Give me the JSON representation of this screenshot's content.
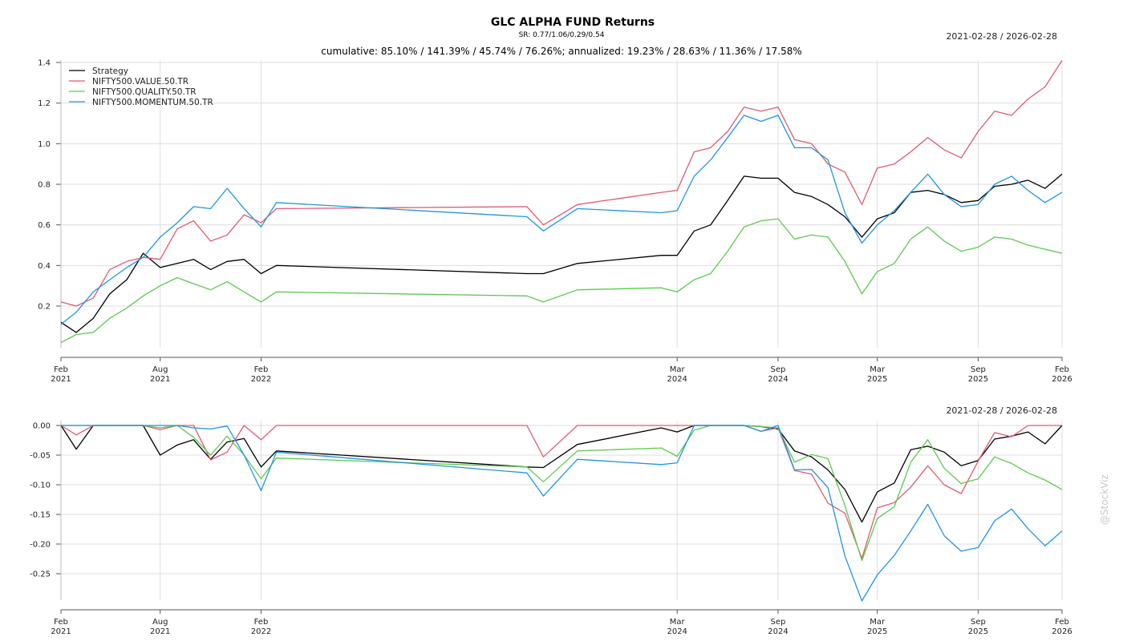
{
  "header": {
    "title": "GLC ALPHA FUND Returns",
    "sharpe": "SR: 0.77/1.06/0.29/0.54",
    "summary": "cumulative: 85.10% / 141.39% / 45.74% / 76.26%; annualized: 19.23% / 28.63% / 11.36% / 17.58%",
    "date_range_top": "2021-02-28 / 2026-02-28",
    "date_range_bottom": "2021-02-28 / 2026-02-28"
  },
  "watermark": "@StockViz",
  "colors": {
    "Strategy": "#000000",
    "NIFTY500.VALUE.50.TR": "#e05a6e",
    "NIFTY500.QUALITY.50.TR": "#5cc94f",
    "NIFTY500.MOMENTUM.50.TR": "#1f96e0",
    "grid": "#dddddd",
    "axis": "#555555"
  },
  "chart_data": [
    {
      "type": "line",
      "title": "GLC ALPHA FUND Returns",
      "ylim": [
        0,
        1.4
      ],
      "yticks": [
        0.2,
        0.4,
        0.6,
        0.8,
        1.0,
        1.2,
        1.4
      ],
      "ytick_labels": [
        "0.2",
        "0.4",
        "0.6",
        "0.8",
        "1.0",
        "1.2",
        "1.4"
      ],
      "xticks": [
        {
          "date": "2021-02",
          "label": [
            "Feb",
            "2021"
          ]
        },
        {
          "date": "2021-08",
          "label": [
            "Aug",
            "2021"
          ]
        },
        {
          "date": "2022-02",
          "label": [
            "Feb",
            "2022"
          ]
        },
        {
          "date": "2024-03",
          "label": [
            "Mar",
            "2024"
          ]
        },
        {
          "date": "2024-09",
          "label": [
            "Sep",
            "2024"
          ]
        },
        {
          "date": "2025-03",
          "label": [
            "Mar",
            "2025"
          ]
        },
        {
          "date": "2025-09",
          "label": [
            "Sep",
            "2025"
          ]
        },
        {
          "date": "2026-02",
          "label": [
            "Feb",
            "2026"
          ]
        }
      ],
      "grid": true,
      "legend": "top-left",
      "x": [
        "2021-02",
        "2021-03",
        "2021-04",
        "2021-05",
        "2021-06",
        "2021-07",
        "2021-08",
        "2021-09",
        "2021-10",
        "2021-11",
        "2021-12",
        "2022-01",
        "2022-02",
        "2022-03",
        "2023-06",
        "2023-07",
        "2023-09",
        "2024-02",
        "2024-03",
        "2024-04",
        "2024-05",
        "2024-06",
        "2024-07",
        "2024-08",
        "2024-09",
        "2024-10",
        "2024-11",
        "2024-12",
        "2025-01",
        "2025-02",
        "2025-03",
        "2025-04",
        "2025-05",
        "2025-06",
        "2025-07",
        "2025-08",
        "2025-09",
        "2025-10",
        "2025-11",
        "2025-12",
        "2026-01",
        "2026-02"
      ],
      "series": [
        {
          "name": "Strategy",
          "values": [
            0.12,
            0.07,
            0.14,
            0.26,
            0.33,
            0.46,
            0.39,
            0.41,
            0.43,
            0.38,
            0.42,
            0.43,
            0.36,
            0.4,
            0.36,
            0.36,
            0.41,
            0.45,
            0.45,
            0.57,
            0.6,
            0.72,
            0.84,
            0.83,
            0.83,
            0.76,
            0.74,
            0.7,
            0.64,
            0.54,
            0.63,
            0.66,
            0.76,
            0.77,
            0.75,
            0.71,
            0.72,
            0.79,
            0.8,
            0.82,
            0.78,
            0.85
          ]
        },
        {
          "name": "NIFTY500.VALUE.50.TR",
          "values": [
            0.22,
            0.2,
            0.24,
            0.38,
            0.42,
            0.44,
            0.43,
            0.58,
            0.62,
            0.52,
            0.55,
            0.65,
            0.61,
            0.68,
            0.69,
            0.6,
            0.7,
            0.76,
            0.77,
            0.96,
            0.98,
            1.06,
            1.18,
            1.16,
            1.18,
            1.02,
            1.0,
            0.9,
            0.86,
            0.7,
            0.88,
            0.9,
            0.96,
            1.03,
            0.97,
            0.93,
            1.06,
            1.16,
            1.14,
            1.22,
            1.28,
            1.41
          ]
        },
        {
          "name": "NIFTY500.QUALITY.50.TR",
          "values": [
            0.02,
            0.06,
            0.07,
            0.14,
            0.19,
            0.25,
            0.3,
            0.34,
            0.31,
            0.28,
            0.32,
            0.27,
            0.22,
            0.27,
            0.25,
            0.22,
            0.28,
            0.29,
            0.27,
            0.33,
            0.36,
            0.47,
            0.59,
            0.62,
            0.63,
            0.53,
            0.55,
            0.54,
            0.42,
            0.26,
            0.37,
            0.41,
            0.53,
            0.59,
            0.52,
            0.47,
            0.49,
            0.54,
            0.53,
            0.5,
            0.48,
            0.46
          ]
        },
        {
          "name": "NIFTY500.MOMENTUM.50.TR",
          "values": [
            0.11,
            0.17,
            0.27,
            0.33,
            0.39,
            0.44,
            0.54,
            0.61,
            0.69,
            0.68,
            0.78,
            0.68,
            0.59,
            0.71,
            0.64,
            0.57,
            0.68,
            0.66,
            0.67,
            0.84,
            0.92,
            1.03,
            1.14,
            1.11,
            1.14,
            0.98,
            0.98,
            0.92,
            0.66,
            0.51,
            0.6,
            0.67,
            0.76,
            0.85,
            0.75,
            0.69,
            0.7,
            0.8,
            0.84,
            0.77,
            0.71,
            0.76
          ]
        }
      ]
    },
    {
      "type": "line",
      "title": "",
      "ylim": [
        -0.27,
        0.0
      ],
      "yticks": [
        0.0,
        -0.05,
        -0.1,
        -0.15,
        -0.2,
        -0.25
      ],
      "ytick_labels": [
        "0.00",
        "-0.05",
        "-0.10",
        "-0.15",
        "-0.20",
        "-0.25"
      ],
      "xticks": [
        {
          "date": "2021-02",
          "label": [
            "Feb",
            "2021"
          ]
        },
        {
          "date": "2021-08",
          "label": [
            "Aug",
            "2021"
          ]
        },
        {
          "date": "2022-02",
          "label": [
            "Feb",
            "2022"
          ]
        },
        {
          "date": "2024-03",
          "label": [
            "Mar",
            "2024"
          ]
        },
        {
          "date": "2024-09",
          "label": [
            "Sep",
            "2024"
          ]
        },
        {
          "date": "2025-03",
          "label": [
            "Mar",
            "2025"
          ]
        },
        {
          "date": "2025-09",
          "label": [
            "Sep",
            "2025"
          ]
        },
        {
          "date": "2026-02",
          "label": [
            "Feb",
            "2026"
          ]
        }
      ],
      "grid": true,
      "legend": "none",
      "x": [
        "2021-02",
        "2021-03",
        "2021-04",
        "2021-05",
        "2021-06",
        "2021-07",
        "2021-08",
        "2021-09",
        "2021-10",
        "2021-11",
        "2021-12",
        "2022-01",
        "2022-02",
        "2022-03",
        "2023-06",
        "2023-07",
        "2023-09",
        "2024-02",
        "2024-03",
        "2024-04",
        "2024-05",
        "2024-06",
        "2024-07",
        "2024-08",
        "2024-09",
        "2024-10",
        "2024-11",
        "2024-12",
        "2025-01",
        "2025-02",
        "2025-03",
        "2025-04",
        "2025-05",
        "2025-06",
        "2025-07",
        "2025-08",
        "2025-09",
        "2025-10",
        "2025-11",
        "2025-12",
        "2026-01",
        "2026-02"
      ],
      "series": [
        {
          "name": "Strategy",
          "values": [
            0.0,
            -0.04,
            0.0,
            0.0,
            0.0,
            0.0,
            -0.05,
            -0.033,
            -0.024,
            -0.057,
            -0.028,
            -0.022,
            -0.07,
            -0.043,
            -0.07,
            -0.071,
            -0.032,
            -0.004,
            -0.011,
            0.0,
            0.0,
            0.0,
            0.0,
            -0.002,
            -0.006,
            -0.043,
            -0.053,
            -0.075,
            -0.108,
            -0.163,
            -0.112,
            -0.097,
            -0.041,
            -0.035,
            -0.045,
            -0.068,
            -0.059,
            -0.023,
            -0.018,
            -0.011,
            -0.031,
            0.0
          ]
        },
        {
          "name": "NIFTY500.VALUE.50.TR",
          "values": [
            0.0,
            -0.016,
            0.0,
            0.0,
            0.0,
            0.0,
            -0.007,
            0.0,
            0.0,
            -0.058,
            -0.045,
            0.0,
            -0.024,
            0.0,
            0.0,
            -0.053,
            0.0,
            0.0,
            0.0,
            0.0,
            0.0,
            0.0,
            0.0,
            -0.01,
            -0.004,
            -0.076,
            -0.082,
            -0.131,
            -0.148,
            -0.224,
            -0.139,
            -0.13,
            -0.104,
            -0.068,
            -0.1,
            -0.115,
            -0.06,
            -0.012,
            -0.019,
            0.0,
            0.0,
            0.0
          ]
        },
        {
          "name": "NIFTY500.QUALITY.50.TR",
          "values": [
            0.0,
            0.0,
            0.0,
            0.0,
            0.0,
            0.0,
            -0.004,
            0.0,
            -0.02,
            -0.05,
            -0.018,
            -0.05,
            -0.09,
            -0.055,
            -0.07,
            -0.095,
            -0.043,
            -0.038,
            -0.052,
            -0.008,
            0.0,
            0.0,
            0.0,
            -0.002,
            -0.004,
            -0.062,
            -0.049,
            -0.056,
            -0.135,
            -0.228,
            -0.157,
            -0.137,
            -0.062,
            -0.024,
            -0.072,
            -0.098,
            -0.09,
            -0.053,
            -0.064,
            -0.08,
            -0.092,
            -0.108
          ]
        },
        {
          "name": "NIFTY500.MOMENTUM.50.TR",
          "values": [
            0.0,
            0.0,
            0.0,
            0.0,
            0.0,
            0.0,
            0.0,
            0.0,
            -0.004,
            -0.006,
            -0.001,
            -0.05,
            -0.11,
            -0.045,
            -0.08,
            -0.119,
            -0.057,
            -0.066,
            -0.063,
            0.0,
            0.0,
            0.0,
            0.0,
            -0.01,
            0.0,
            -0.075,
            -0.074,
            -0.105,
            -0.22,
            -0.296,
            -0.252,
            -0.219,
            -0.178,
            -0.133,
            -0.186,
            -0.212,
            -0.206,
            -0.161,
            -0.141,
            -0.174,
            -0.203,
            -0.178
          ]
        }
      ]
    }
  ]
}
